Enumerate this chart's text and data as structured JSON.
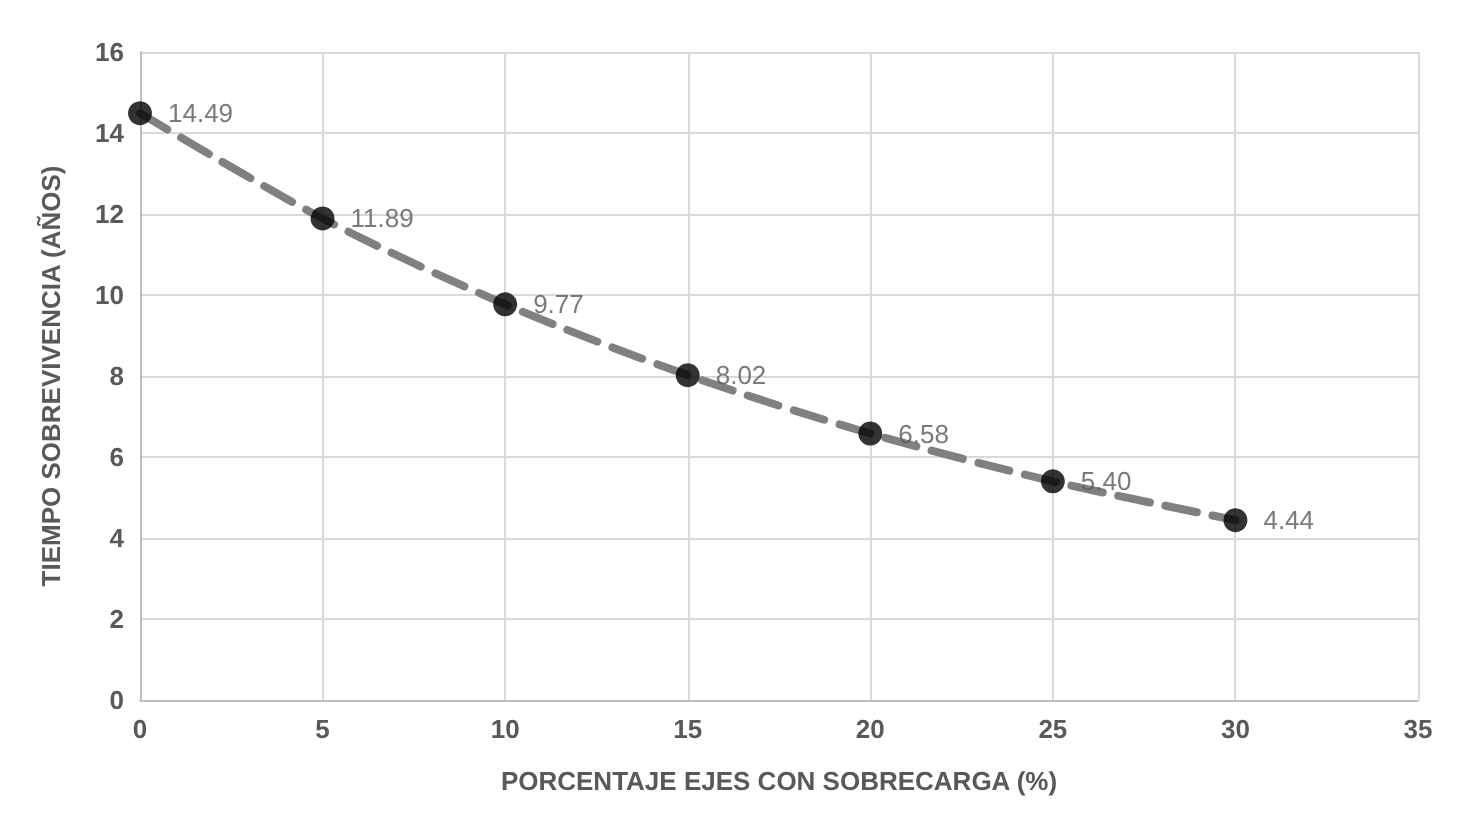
{
  "chart_data": {
    "type": "scatter",
    "xlabel": "PORCENTAJE EJES CON SOBRECARGA (%)",
    "ylabel": "TIEMPO SOBREVIVENCIA (AÑOS)",
    "x": [
      0,
      5,
      10,
      15,
      20,
      25,
      30
    ],
    "series": [
      {
        "type": "line",
        "color": "#808080",
        "line_style": "dashed",
        "marker": "none",
        "values": [
          14.49,
          11.89,
          9.77,
          8.02,
          6.58,
          5.4,
          4.44
        ]
      },
      {
        "color": "#000000",
        "marker": "circle",
        "values": [
          14.49,
          11.89,
          9.77,
          8.02,
          6.58,
          5.4,
          4.44
        ],
        "value_labels": [
          "14.49",
          "11.89",
          "9.77",
          "8.02",
          "6.58",
          "5.40",
          "4.44"
        ]
      }
    ],
    "xlim": [
      0,
      35
    ],
    "xticks": [
      0,
      5,
      10,
      15,
      20,
      25,
      30,
      35
    ],
    "ylim": [
      0,
      16
    ],
    "yticks": [
      0,
      2,
      4,
      6,
      8,
      10,
      12,
      14,
      16
    ],
    "grid": true
  }
}
